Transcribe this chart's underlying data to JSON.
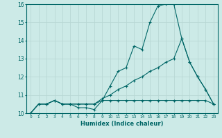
{
  "xlabel": "Humidex (Indice chaleur)",
  "bg_color": "#cceae7",
  "grid_color": "#b8d8d4",
  "line_color": "#006666",
  "xlim": [
    -0.5,
    23.5
  ],
  "ylim": [
    10.0,
    16.0
  ],
  "yticks": [
    10,
    11,
    12,
    13,
    14,
    15,
    16
  ],
  "xticks": [
    0,
    1,
    2,
    3,
    4,
    5,
    6,
    7,
    8,
    9,
    10,
    11,
    12,
    13,
    14,
    15,
    16,
    17,
    18,
    19,
    20,
    21,
    22,
    23
  ],
  "line1_x": [
    0,
    1,
    2,
    3,
    4,
    5,
    6,
    7,
    8,
    9,
    10,
    11,
    12,
    13,
    14,
    15,
    16,
    17,
    18,
    19,
    20,
    21,
    22,
    23
  ],
  "line1_y": [
    10.0,
    10.5,
    10.5,
    10.7,
    10.5,
    10.5,
    10.3,
    10.3,
    10.2,
    10.7,
    11.5,
    12.3,
    12.5,
    13.7,
    13.5,
    15.0,
    15.9,
    16.0,
    16.0,
    14.1,
    12.8,
    12.0,
    11.3,
    10.5
  ],
  "line2_x": [
    0,
    1,
    2,
    3,
    4,
    5,
    6,
    7,
    8,
    9,
    10,
    11,
    12,
    13,
    14,
    15,
    16,
    17,
    18,
    19,
    20,
    21,
    22,
    23
  ],
  "line2_y": [
    10.0,
    10.5,
    10.5,
    10.7,
    10.5,
    10.5,
    10.5,
    10.5,
    10.5,
    10.8,
    11.0,
    11.3,
    11.5,
    11.8,
    12.0,
    12.3,
    12.5,
    12.8,
    13.0,
    14.1,
    12.8,
    12.0,
    11.3,
    10.5
  ],
  "line3_x": [
    0,
    1,
    2,
    3,
    4,
    5,
    6,
    7,
    8,
    9,
    10,
    11,
    12,
    13,
    14,
    15,
    16,
    17,
    18,
    19,
    20,
    21,
    22,
    23
  ],
  "line3_y": [
    10.0,
    10.5,
    10.5,
    10.7,
    10.5,
    10.5,
    10.5,
    10.5,
    10.5,
    10.7,
    10.7,
    10.7,
    10.7,
    10.7,
    10.7,
    10.7,
    10.7,
    10.7,
    10.7,
    10.7,
    10.7,
    10.7,
    10.7,
    10.5
  ]
}
